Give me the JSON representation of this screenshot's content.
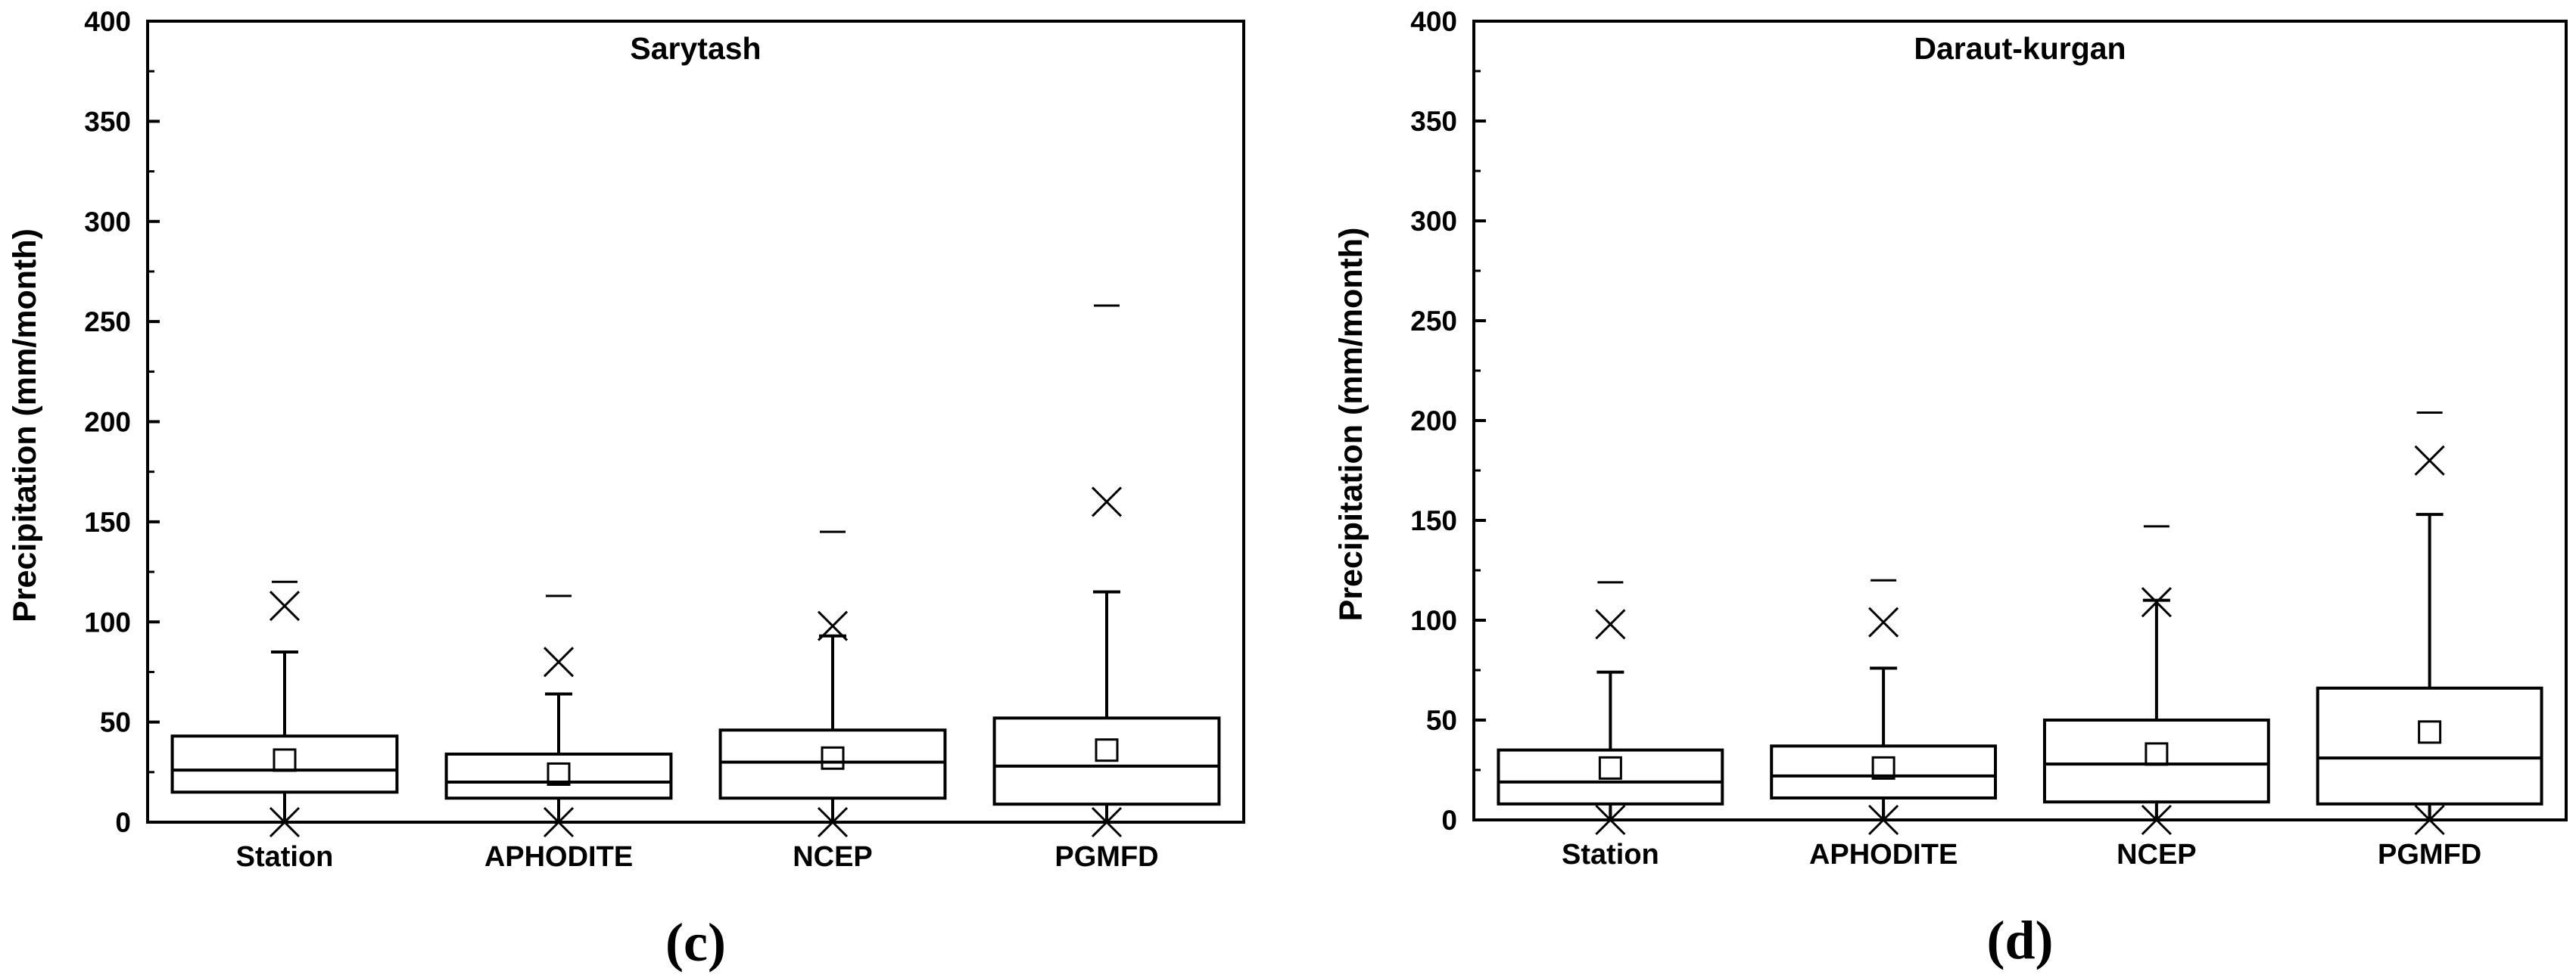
{
  "chart_data": [
    {
      "type": "box",
      "panel_label": "(c)",
      "title": "Sarytash",
      "ylabel": "Precipitation (mm/month)",
      "ylim": [
        0,
        400
      ],
      "yticks": [
        0,
        50,
        100,
        150,
        200,
        250,
        300,
        350,
        400
      ],
      "categories": [
        "Station",
        "APHODITE",
        "NCEP",
        "PGMFD"
      ],
      "boxes": [
        {
          "category": "Station",
          "whisker_low": 0,
          "q1": 15,
          "median": 26,
          "q3": 43,
          "whisker_high": 85,
          "mean": 31,
          "x_max": 108,
          "x_min": 0,
          "dash_max": 120
        },
        {
          "category": "APHODITE",
          "whisker_low": 0,
          "q1": 12,
          "median": 20,
          "q3": 34,
          "whisker_high": 64,
          "mean": 24,
          "x_max": 80,
          "x_min": 0,
          "dash_max": 113
        },
        {
          "category": "NCEP",
          "whisker_low": 0,
          "q1": 12,
          "median": 30,
          "q3": 46,
          "whisker_high": 93,
          "mean": 32,
          "x_max": 98,
          "x_min": 0,
          "dash_max": 145
        },
        {
          "category": "PGMFD",
          "whisker_low": 0,
          "q1": 9,
          "median": 28,
          "q3": 52,
          "whisker_high": 115,
          "mean": 36,
          "x_max": 160,
          "x_min": 0,
          "dash_max": 258
        }
      ]
    },
    {
      "type": "box",
      "panel_label": "(d)",
      "title": "Daraut-kurgan",
      "ylabel": "Precipitation (mm/month)",
      "ylim": [
        0,
        400
      ],
      "yticks": [
        0,
        50,
        100,
        150,
        200,
        250,
        300,
        350,
        400
      ],
      "categories": [
        "Station",
        "APHODITE",
        "NCEP",
        "PGMFD"
      ],
      "boxes": [
        {
          "category": "Station",
          "whisker_low": 0,
          "q1": 8,
          "median": 19,
          "q3": 35,
          "whisker_high": 74,
          "mean": 26,
          "x_max": 98,
          "x_min": 0,
          "dash_max": 119
        },
        {
          "category": "APHODITE",
          "whisker_low": 0,
          "q1": 11,
          "median": 22,
          "q3": 37,
          "whisker_high": 76,
          "mean": 26,
          "x_max": 99,
          "x_min": 0,
          "dash_max": 120
        },
        {
          "category": "NCEP",
          "whisker_low": 0,
          "q1": 9,
          "median": 28,
          "q3": 50,
          "whisker_high": 110,
          "mean": 33,
          "x_max": 109,
          "x_min": 0,
          "dash_max": 147
        },
        {
          "category": "PGMFD",
          "whisker_low": 0,
          "q1": 8,
          "median": 31,
          "q3": 66,
          "whisker_high": 153,
          "mean": 44,
          "x_max": 180,
          "x_min": 0,
          "dash_max": 204
        }
      ]
    }
  ]
}
